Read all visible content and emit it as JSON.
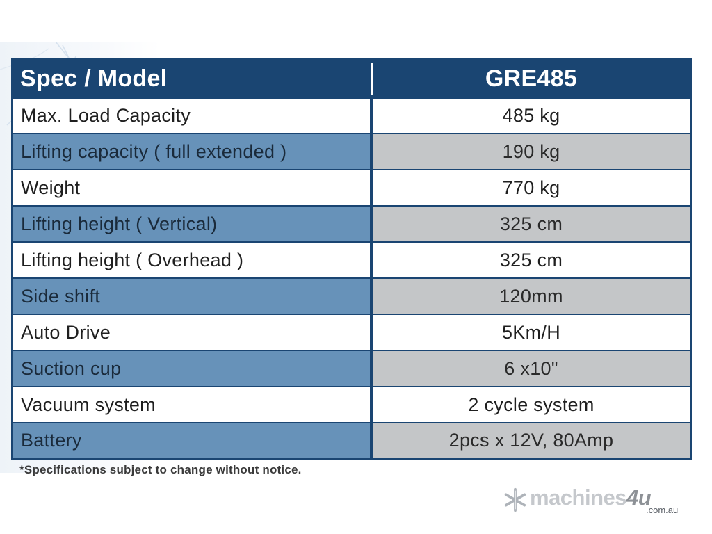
{
  "table": {
    "header": {
      "label": "Spec / Model",
      "value": "GRE485"
    },
    "rows": [
      {
        "label": "Max. Load Capacity",
        "value": "485 kg"
      },
      {
        "label": "Lifting capacity ( full extended )",
        "value": "190 kg"
      },
      {
        "label": "Weight",
        "value": "770 kg"
      },
      {
        "label": "Lifting height ( Vertical)",
        "value": "325 cm"
      },
      {
        "label": "Lifting height ( Overhead )",
        "value": "325 cm"
      },
      {
        "label": "Side shift",
        "value": "120mm"
      },
      {
        "label": "Auto Drive",
        "value": "5Km/H"
      },
      {
        "label": "Suction cup",
        "value": "6 x10\""
      },
      {
        "label": "Vacuum system",
        "value": "2 cycle system"
      },
      {
        "label": "Battery",
        "value": "2pcs x 12V, 80Amp"
      }
    ]
  },
  "footnote": "*Specifications subject to change without notice.",
  "watermark": {
    "name": "machines",
    "four": "4u",
    "domain": ".com.au",
    "icon": "snowflake-icon"
  },
  "colors": {
    "header_bg": "#1a4572",
    "dark_label_bg": "#6792b9",
    "dark_value_bg": "#c4c6c8"
  }
}
